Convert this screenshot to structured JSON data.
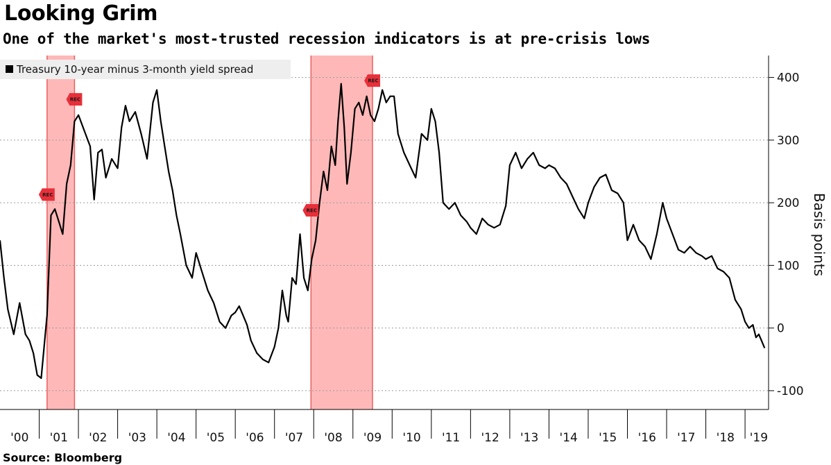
{
  "header": {
    "title": "Looking Grim",
    "subtitle": "One of the market's most-trusted recession indicators is at pre-crisis lows"
  },
  "footer": {
    "source": "Source: Bloomberg"
  },
  "colors": {
    "line": "#000000",
    "recession_band": "#ff9a9a",
    "rec_marker": "#e8303a",
    "grid": "#9a9a9a",
    "legend_bg": "#eeeeee"
  },
  "chart_data": {
    "type": "line",
    "ylabel": "Basis points",
    "ylim": [
      -130,
      435
    ],
    "xlim": [
      2000.0,
      2019.6
    ],
    "y_ticks": [
      400,
      300,
      200,
      100,
      0,
      -100
    ],
    "y_tick_labels": [
      "400",
      "300",
      "200",
      "100",
      "0",
      "-100"
    ],
    "x_tick_labels": [
      "'00",
      "'01",
      "'02",
      "'03",
      "'04",
      "'05",
      "'06",
      "'07",
      "'08",
      "'09",
      "'10",
      "'11",
      "'12",
      "'13",
      "'14",
      "'15",
      "'16",
      "'17",
      "'18",
      "'19"
    ],
    "grid": "horizontal dotted",
    "legend": "top-left",
    "recessions": [
      {
        "start": 2001.2,
        "end": 2001.9
      },
      {
        "start": 2007.93,
        "end": 2009.5
      }
    ],
    "rec_markers": [
      {
        "label": "REC",
        "x": 2001.2,
        "y": 213
      },
      {
        "label": "REC",
        "x": 2001.9,
        "y": 365
      },
      {
        "label": "REC",
        "x": 2007.93,
        "y": 188
      },
      {
        "label": "REC",
        "x": 2009.5,
        "y": 395
      }
    ],
    "series": [
      {
        "name": "Treasury 10-year minus 3-month yield spread",
        "x": [
          2000.0,
          2000.1,
          2000.2,
          2000.35,
          2000.5,
          2000.65,
          2000.75,
          2000.85,
          2000.95,
          2001.05,
          2001.2,
          2001.3,
          2001.4,
          2001.5,
          2001.6,
          2001.7,
          2001.8,
          2001.9,
          2002.0,
          2002.15,
          2002.3,
          2002.4,
          2002.5,
          2002.6,
          2002.7,
          2002.85,
          2003.0,
          2003.1,
          2003.2,
          2003.3,
          2003.45,
          2003.6,
          2003.75,
          2003.9,
          2004.0,
          2004.1,
          2004.2,
          2004.3,
          2004.4,
          2004.5,
          2004.6,
          2004.75,
          2004.9,
          2005.0,
          2005.15,
          2005.3,
          2005.45,
          2005.6,
          2005.75,
          2005.9,
          2006.0,
          2006.1,
          2006.2,
          2006.3,
          2006.4,
          2006.55,
          2006.7,
          2006.85,
          2007.0,
          2007.1,
          2007.2,
          2007.3,
          2007.35,
          2007.45,
          2007.55,
          2007.65,
          2007.75,
          2007.85,
          2007.95,
          2008.05,
          2008.15,
          2008.25,
          2008.35,
          2008.45,
          2008.55,
          2008.62,
          2008.7,
          2008.78,
          2008.85,
          2008.95,
          2009.05,
          2009.15,
          2009.25,
          2009.35,
          2009.45,
          2009.55,
          2009.65,
          2009.75,
          2009.85,
          2009.95,
          2010.05,
          2010.15,
          2010.3,
          2010.45,
          2010.6,
          2010.75,
          2010.9,
          2011.0,
          2011.1,
          2011.2,
          2011.3,
          2011.45,
          2011.6,
          2011.75,
          2011.9,
          2012.0,
          2012.15,
          2012.3,
          2012.45,
          2012.6,
          2012.75,
          2012.9,
          2013.0,
          2013.15,
          2013.3,
          2013.45,
          2013.6,
          2013.75,
          2013.9,
          2014.0,
          2014.15,
          2014.3,
          2014.45,
          2014.6,
          2014.75,
          2014.9,
          2015.0,
          2015.15,
          2015.3,
          2015.45,
          2015.6,
          2015.75,
          2015.9,
          2016.0,
          2016.15,
          2016.3,
          2016.45,
          2016.6,
          2016.75,
          2016.9,
          2017.0,
          2017.15,
          2017.3,
          2017.45,
          2017.6,
          2017.75,
          2017.9,
          2018.0,
          2018.15,
          2018.3,
          2018.45,
          2018.6,
          2018.75,
          2018.9,
          2019.0,
          2019.1,
          2019.2,
          2019.28,
          2019.35,
          2019.42,
          2019.5
        ],
        "values": [
          140,
          80,
          30,
          -10,
          40,
          -10,
          -20,
          -40,
          -75,
          -80,
          20,
          180,
          190,
          170,
          150,
          230,
          260,
          330,
          340,
          315,
          290,
          205,
          280,
          285,
          240,
          270,
          255,
          320,
          355,
          330,
          345,
          310,
          270,
          360,
          380,
          330,
          290,
          250,
          220,
          180,
          150,
          100,
          80,
          120,
          90,
          60,
          40,
          10,
          0,
          20,
          25,
          35,
          20,
          5,
          -20,
          -40,
          -50,
          -55,
          -30,
          0,
          60,
          20,
          10,
          80,
          70,
          150,
          80,
          60,
          110,
          140,
          200,
          250,
          220,
          290,
          260,
          330,
          390,
          320,
          230,
          280,
          350,
          360,
          340,
          370,
          340,
          330,
          350,
          380,
          360,
          370,
          370,
          310,
          280,
          260,
          240,
          310,
          300,
          350,
          330,
          280,
          200,
          190,
          200,
          180,
          170,
          160,
          150,
          175,
          165,
          160,
          165,
          195,
          260,
          280,
          255,
          270,
          280,
          260,
          255,
          260,
          255,
          240,
          230,
          210,
          190,
          175,
          200,
          225,
          240,
          245,
          220,
          215,
          200,
          140,
          165,
          140,
          130,
          110,
          150,
          200,
          175,
          150,
          125,
          120,
          130,
          120,
          115,
          110,
          115,
          95,
          90,
          80,
          45,
          30,
          10,
          0,
          5,
          -15,
          -10,
          -20,
          -32
        ]
      }
    ]
  }
}
